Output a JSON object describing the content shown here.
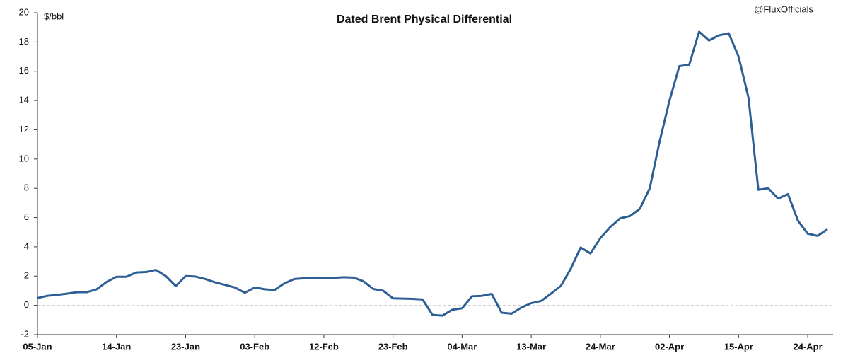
{
  "chart_data": {
    "type": "line",
    "title": "Dated Brent Physical Differential",
    "y_label": "$/bbl",
    "annotation": "@FluxOfficials",
    "categories": [
      "05-Jan",
      null,
      null,
      null,
      null,
      null,
      null,
      null,
      "14-Jan",
      null,
      null,
      null,
      null,
      null,
      null,
      "23-Jan",
      null,
      null,
      null,
      null,
      null,
      null,
      "03-Feb",
      null,
      null,
      null,
      null,
      null,
      null,
      "12-Feb",
      null,
      null,
      null,
      null,
      null,
      null,
      "23-Feb",
      null,
      null,
      null,
      null,
      null,
      null,
      "04-Mar",
      null,
      null,
      null,
      null,
      null,
      null,
      "13-Mar",
      null,
      null,
      null,
      null,
      null,
      null,
      "24-Mar",
      null,
      null,
      null,
      null,
      null,
      null,
      "02-Apr",
      null,
      null,
      null,
      null,
      null,
      null,
      "15-Apr",
      null,
      null,
      null,
      null,
      null,
      null,
      "24-Apr",
      null,
      null
    ],
    "series": [
      {
        "name": "Dated Brent Physical Differential",
        "color": "#2e5f94",
        "values": [
          0.5,
          0.65,
          0.72,
          0.8,
          0.9,
          0.9,
          1.1,
          1.6,
          1.95,
          1.95,
          2.25,
          2.28,
          2.42,
          2.0,
          1.32,
          2.0,
          1.97,
          1.8,
          1.57,
          1.4,
          1.22,
          0.86,
          1.22,
          1.1,
          1.05,
          1.5,
          1.8,
          1.85,
          1.9,
          1.85,
          1.88,
          1.92,
          1.9,
          1.65,
          1.12,
          1.0,
          0.48,
          0.46,
          0.44,
          0.4,
          -0.65,
          -0.7,
          -0.3,
          -0.2,
          0.62,
          0.65,
          0.78,
          -0.5,
          -0.57,
          -0.15,
          0.15,
          0.3,
          0.8,
          1.33,
          2.5,
          3.95,
          3.55,
          4.6,
          5.35,
          5.95,
          6.1,
          6.6,
          8.0,
          11.2,
          14.0,
          16.35,
          16.45,
          18.7,
          18.1,
          18.45,
          18.6,
          17.0,
          14.2,
          7.9,
          8.0,
          7.3,
          7.6,
          5.8,
          4.9,
          4.75,
          5.2
        ]
      }
    ],
    "ylim": [
      -2,
      20
    ],
    "yticks": [
      -2,
      0,
      2,
      4,
      6,
      8,
      10,
      12,
      14,
      16,
      18,
      20
    ],
    "zero_line": true
  }
}
